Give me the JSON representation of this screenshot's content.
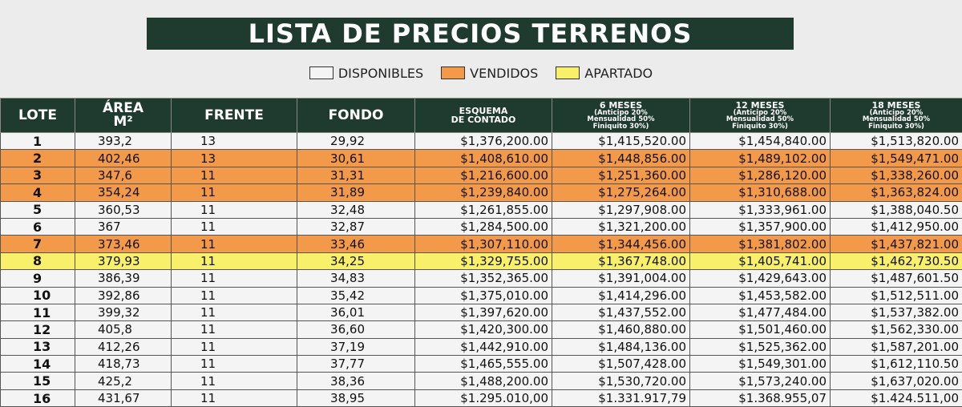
{
  "header": {
    "title": "LISTA DE PRECIOS TERRENOS"
  },
  "legend": [
    {
      "label": "DISPONIBLES",
      "color": "#f4f4f4"
    },
    {
      "label": "VENDIDOS",
      "color": "#f3994a"
    },
    {
      "label": "APARTADO",
      "color": "#f8f06a"
    }
  ],
  "table": {
    "columns": [
      {
        "title": "LOTE"
      },
      {
        "title": "ÁREA",
        "notes": [
          "M²"
        ]
      },
      {
        "title": "FRENTE"
      },
      {
        "title": "FONDO"
      },
      {
        "title": "ESQUEMA",
        "notes": [
          "DE CONTADO"
        ]
      },
      {
        "title": "6 MESES",
        "notes": [
          "(Anticipo 20%",
          "Mensualidad 50%",
          "Finiquito 30%)"
        ]
      },
      {
        "title": "12 MESES",
        "notes": [
          "(Anticipo 20%",
          "Mensualidad 50%",
          "Finiquito 30%)"
        ]
      },
      {
        "title": "18 MESES",
        "notes": [
          "(Anticipo 20%",
          "Mensualidad 50%",
          "Finiquito 30%)"
        ]
      }
    ],
    "rows": [
      {
        "status": 0,
        "cells": [
          "1",
          "393,2",
          "13",
          "29,92",
          "$1,376,200.00",
          "$1,415,520.00",
          "$1,454,840.00",
          "$1,513,820.00"
        ]
      },
      {
        "status": 1,
        "cells": [
          "2",
          "402,46",
          "13",
          "30,61",
          "$1,408,610.00",
          "$1,448,856.00",
          "$1,489,102.00",
          "$1,549,471.00"
        ]
      },
      {
        "status": 1,
        "cells": [
          "3",
          "347,6",
          "11",
          "31,31",
          "$1,216,600.00",
          "$1,251,360.00",
          "$1,286,120.00",
          "$1,338,260.00"
        ]
      },
      {
        "status": 1,
        "cells": [
          "4",
          "354,24",
          "11",
          "31,89",
          "$1,239,840.00",
          "$1,275,264.00",
          "$1,310,688.00",
          "$1,363,824.00"
        ]
      },
      {
        "status": 0,
        "cells": [
          "5",
          "360,53",
          "11",
          "32,48",
          "$1,261,855.00",
          "$1,297,908.00",
          "$1,333,961.00",
          "$1,388,040.50"
        ]
      },
      {
        "status": 0,
        "cells": [
          "6",
          "367",
          "11",
          "32,87",
          "$1,284,500.00",
          "$1,321,200.00",
          "$1,357,900.00",
          "$1,412,950.00"
        ]
      },
      {
        "status": 1,
        "cells": [
          "7",
          "373,46",
          "11",
          "33,46",
          "$1,307,110.00",
          "$1,344,456.00",
          "$1,381,802.00",
          "$1,437,821.00"
        ]
      },
      {
        "status": 2,
        "cells": [
          "8",
          "379,93",
          "11",
          "34,25",
          "$1,329,755.00",
          "$1,367,748.00",
          "$1,405,741.00",
          "$1,462,730.50"
        ]
      },
      {
        "status": 0,
        "cells": [
          "9",
          "386,39",
          "11",
          "34,83",
          "$1,352,365.00",
          "$1,391,004.00",
          "$1,429,643.00",
          "$1,487,601.50"
        ]
      },
      {
        "status": 0,
        "cells": [
          "10",
          "392,86",
          "11",
          "35,42",
          "$1,375,010.00",
          "$1,414,296.00",
          "$1,453,582.00",
          "$1,512,511.00"
        ]
      },
      {
        "status": 0,
        "cells": [
          "11",
          "399,32",
          "11",
          "36,01",
          "$1,397,620.00",
          "$1,437,552.00",
          "$1,477,484.00",
          "$1,537,382.00"
        ]
      },
      {
        "status": 0,
        "cells": [
          "12",
          "405,8",
          "11",
          "36,60",
          "$1,420,300.00",
          "$1,460,880.00",
          "$1,501,460.00",
          "$1,562,330.00"
        ]
      },
      {
        "status": 0,
        "cells": [
          "13",
          "412,26",
          "11",
          "37,19",
          "$1,442,910.00",
          "$1,484,136.00",
          "$1,525,362.00",
          "$1,587,201.00"
        ]
      },
      {
        "status": 0,
        "cells": [
          "14",
          "418,73",
          "11",
          "37,77",
          "$1,465,555.00",
          "$1,507,428.00",
          "$1,549,301.00",
          "$1,612,110.50"
        ]
      },
      {
        "status": 0,
        "cells": [
          "15",
          "425,2",
          "11",
          "38,36",
          "$1,488,200.00",
          "$1,530,720.00",
          "$1,573,240.00",
          "$1,637,020.00"
        ]
      },
      {
        "status": 0,
        "cells": [
          "16",
          "431,67",
          "11",
          "38,95",
          "$1.295.010,00",
          "$1.331.917,79",
          "$1.368.955,07",
          "$1.424.511,00"
        ]
      }
    ]
  }
}
